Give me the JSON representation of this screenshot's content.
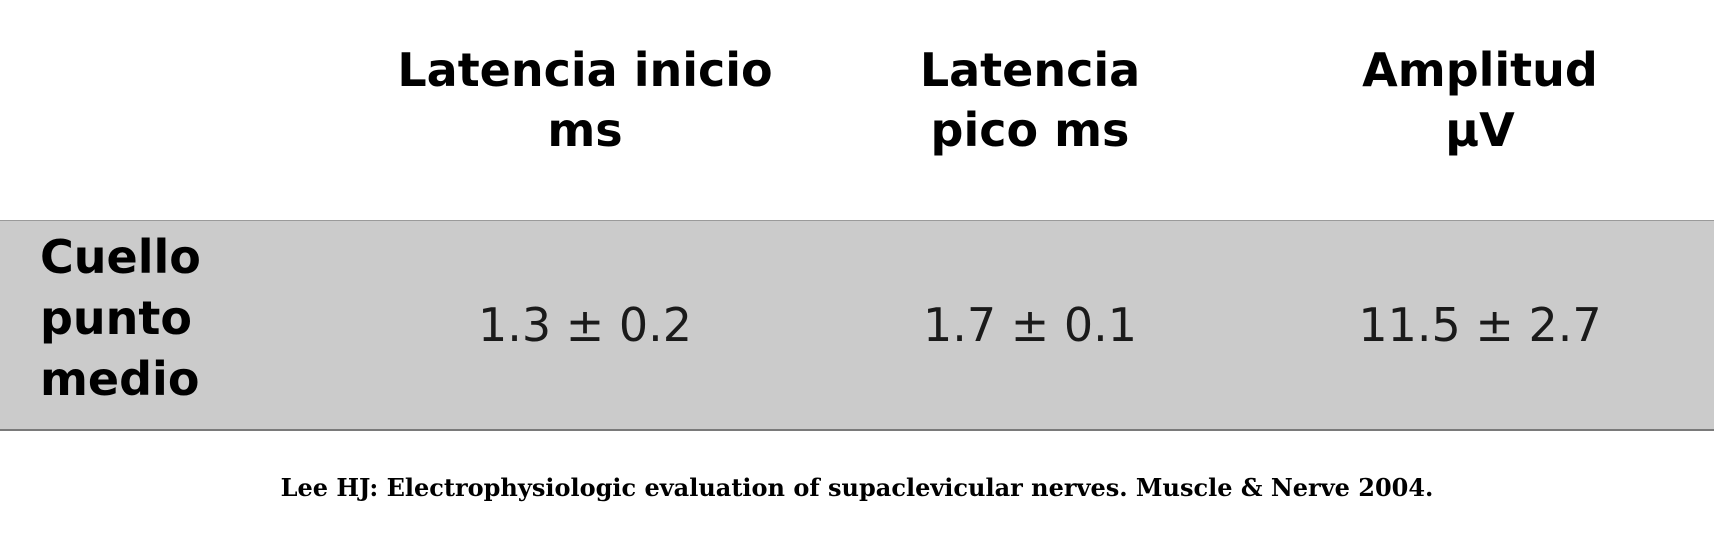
{
  "table": {
    "headers": [
      {
        "line1": "Latencia inicio",
        "line2": "ms"
      },
      {
        "line1": "Latencia",
        "line2": "pico ms"
      },
      {
        "line1": "Amplitud",
        "line2": "µV"
      }
    ],
    "rows": [
      {
        "label": {
          "line1": "Cuello",
          "line2": "punto",
          "line3": "medio"
        },
        "values": [
          "1.3 ± 0.2",
          "1.7 ± 0.1",
          "11.5 ± 2.7"
        ]
      }
    ]
  },
  "citation": "Lee HJ: Electrophysiologic evaluation of supaclevicular nerves. Muscle & Nerve 2004."
}
